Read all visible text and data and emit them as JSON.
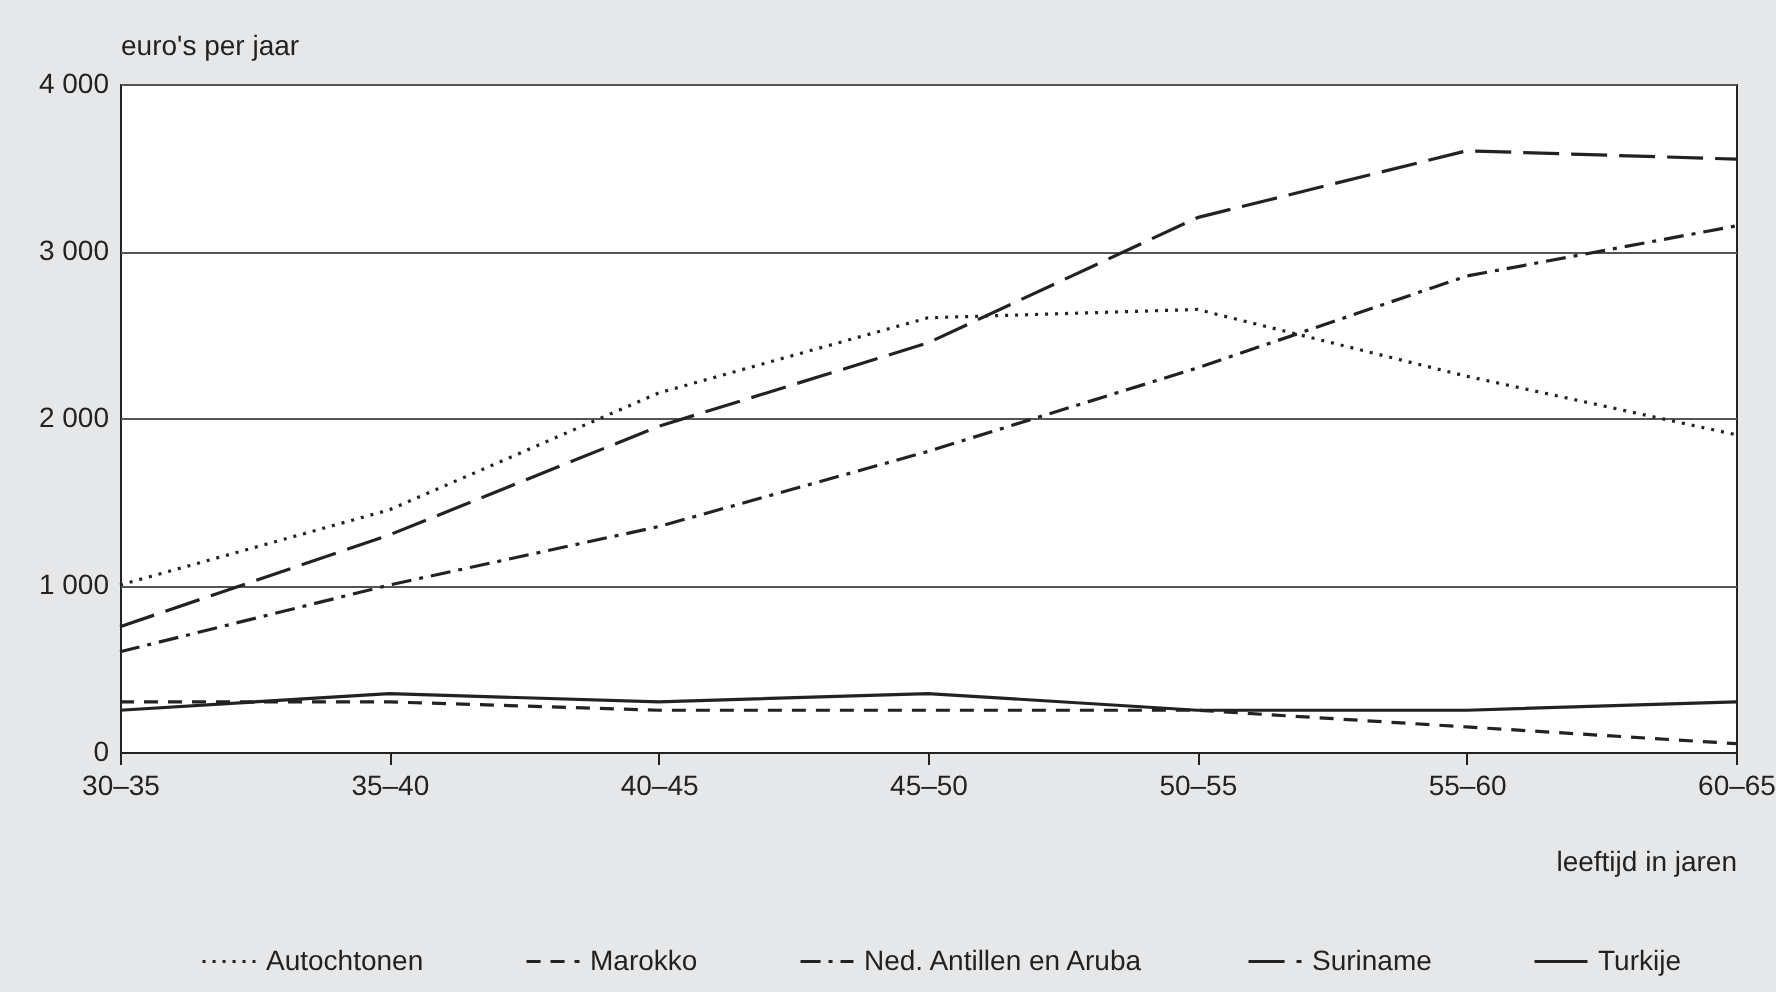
{
  "chart_data": {
    "type": "line",
    "xlabel": "leeftijd in jaren",
    "ylabel": "euro's per jaar",
    "categories": [
      "30–35",
      "35–40",
      "40–45",
      "45–50",
      "50–55",
      "55–60",
      "60–65"
    ],
    "series": [
      {
        "name": "Autochtonen",
        "color": "#222222",
        "line_style": "dotted",
        "values": [
          1000,
          1450,
          2150,
          2600,
          2650,
          2250,
          1900
        ]
      },
      {
        "name": "Marokko",
        "color": "#222222",
        "line_style": "dashed",
        "values": [
          300,
          300,
          250,
          250,
          250,
          150,
          50
        ]
      },
      {
        "name": "Ned. Antillen en Aruba",
        "color": "#222222",
        "line_style": "dashdot",
        "values": [
          600,
          1000,
          1350,
          1800,
          2300,
          2850,
          3150
        ]
      },
      {
        "name": "Suriname",
        "color": "#222222",
        "line_style": "longdash",
        "values": [
          750,
          1300,
          1950,
          2450,
          3200,
          3600,
          3550
        ]
      },
      {
        "name": "Turkije",
        "color": "#222222",
        "line_style": "solid",
        "values": [
          250,
          350,
          300,
          350,
          250,
          250,
          300
        ]
      }
    ],
    "ylim": [
      0,
      4000
    ],
    "yticks": [
      {
        "value": 0,
        "label": "0"
      },
      {
        "value": 1000,
        "label": "1 000"
      },
      {
        "value": 2000,
        "label": "2 000"
      },
      {
        "value": 3000,
        "label": "3 000"
      },
      {
        "value": 4000,
        "label": "4 000"
      }
    ],
    "grid": "y",
    "legend": "bottom",
    "marker": "none"
  }
}
